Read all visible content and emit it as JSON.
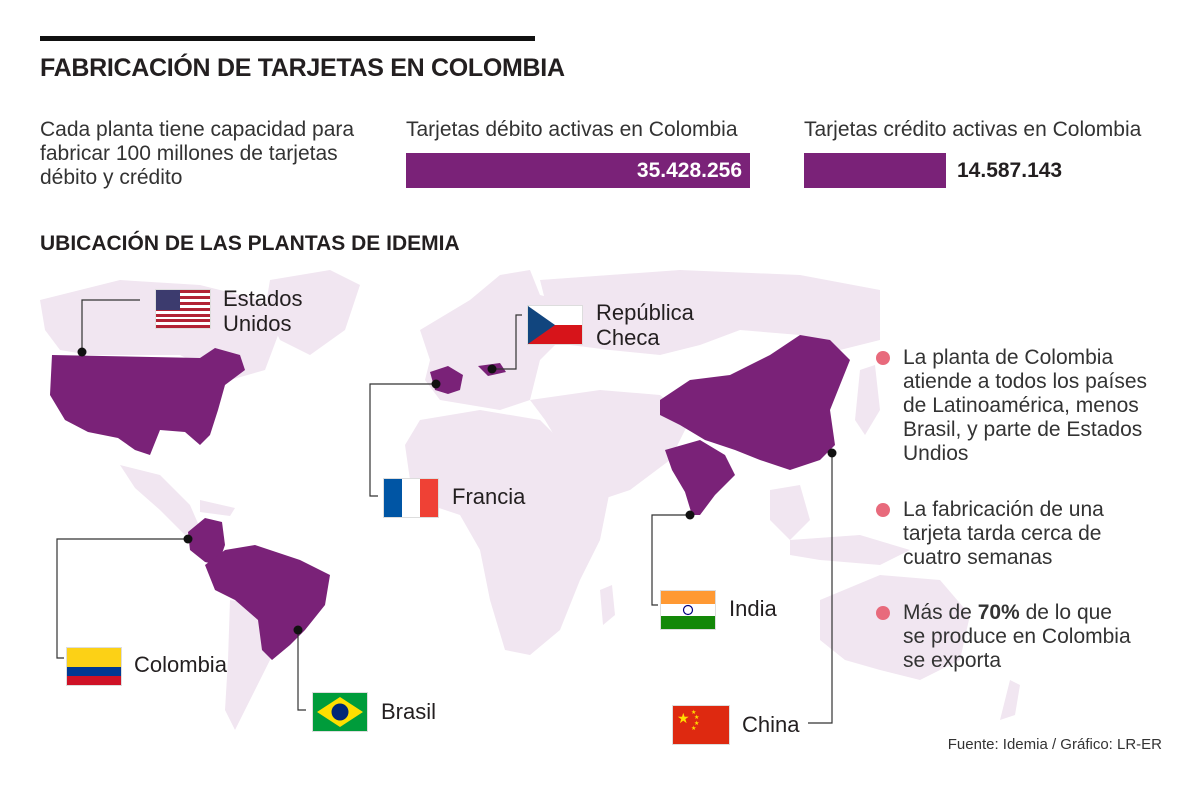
{
  "title": "FABRICACIÓN DE TARJETAS EN COLOMBIA",
  "capacity_text": "Cada planta tiene capacidad para fabricar 100 millones de tarjetas débito y crédito",
  "stats": {
    "debit": {
      "label": "Tarjetas débito activas en Colombia",
      "value": "35.428.256",
      "raw": 35428256
    },
    "credit": {
      "label": "Tarjetas crédito activas en Colombia",
      "value": "14.587.143",
      "raw": 14587143
    }
  },
  "bar_color": "#7a2278",
  "map_highlight_color": "#7a2278",
  "map_base_color": "#f1e6f1",
  "subtitle": "UBICACIÓN DE LAS PLANTAS DE IDEMIA",
  "plants": {
    "usa": {
      "label_line1": "Estados",
      "label_line2": "Unidos",
      "flag": "usa-flag-icon"
    },
    "czech": {
      "label_line1": "República",
      "label_line2": "Checa",
      "flag": "czech-flag-icon"
    },
    "france": {
      "label": "Francia",
      "flag": "france-flag-icon"
    },
    "colombia": {
      "label": "Colombia",
      "flag": "colombia-flag-icon"
    },
    "brazil": {
      "label": "Brasil",
      "flag": "brazil-flag-icon"
    },
    "india": {
      "label": "India",
      "flag": "india-flag-icon"
    },
    "china": {
      "label": "China",
      "flag": "china-flag-icon"
    }
  },
  "notes": [
    {
      "pre": "La planta de Colombia atiende a todos los países de Latinoamérica, menos Brasil, y parte de Estados Undios",
      "bold": "",
      "post": ""
    },
    {
      "pre": "La fabricación de una tarjeta tarda cerca de cuatro semanas",
      "bold": "",
      "post": ""
    },
    {
      "pre": "Más de ",
      "bold": "70%",
      "post": " de lo que se produce en Colombia se exporta"
    }
  ],
  "note_bullet_color": "#e86a7c",
  "source": "Fuente: Idemia / Gráfico: LR-ER"
}
